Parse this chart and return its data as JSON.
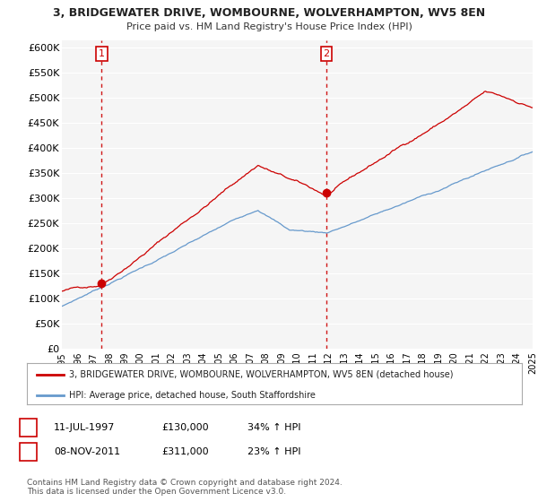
{
  "title": "3, BRIDGEWATER DRIVE, WOMBOURNE, WOLVERHAMPTON, WV5 8EN",
  "subtitle": "Price paid vs. HM Land Registry's House Price Index (HPI)",
  "ylabel_ticks": [
    "£0",
    "£50K",
    "£100K",
    "£150K",
    "£200K",
    "£250K",
    "£300K",
    "£350K",
    "£400K",
    "£450K",
    "£500K",
    "£550K",
    "£600K"
  ],
  "ytick_values": [
    0,
    50000,
    100000,
    150000,
    200000,
    250000,
    300000,
    350000,
    400000,
    450000,
    500000,
    550000,
    600000
  ],
  "ylim": [
    0,
    615000
  ],
  "sale1": {
    "date_label": "11-JUL-1997",
    "price": 130000,
    "hpi_pct": "34% ↑ HPI",
    "num": "1",
    "year": 1997.53
  },
  "sale2": {
    "date_label": "08-NOV-2011",
    "price": 311000,
    "hpi_pct": "23% ↑ HPI",
    "num": "2",
    "year": 2011.85
  },
  "legend_house_label": "3, BRIDGEWATER DRIVE, WOMBOURNE, WOLVERHAMPTON, WV5 8EN (detached house)",
  "legend_hpi_label": "HPI: Average price, detached house, South Staffordshire",
  "house_color": "#cc0000",
  "hpi_color": "#6699cc",
  "footnote": "Contains HM Land Registry data © Crown copyright and database right 2024.\nThis data is licensed under the Open Government Licence v3.0.",
  "plot_bg_color": "#f5f5f5",
  "grid_color": "#ffffff",
  "start_year": 1995,
  "end_year": 2025
}
